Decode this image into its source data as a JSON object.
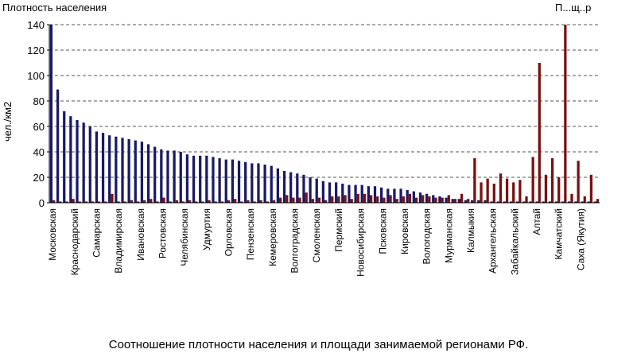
{
  "chart_data": {
    "type": "bar",
    "title": "Плотность населения",
    "title_right": "П...щ..р",
    "ylabel": "чел./км2",
    "caption": "Соотношение плотности населения и площади занимаемой регионами РФ.",
    "ylim": [
      0,
      140
    ],
    "yticks": [
      0,
      20,
      40,
      60,
      80,
      100,
      120,
      140
    ],
    "grid": true,
    "categories_labeled": [
      "Московская",
      "Краснодарский",
      "Самарская",
      "Владимирская",
      "Ивановская",
      "Ростовская",
      "Челябинская",
      "Удмуртия",
      "Орловская",
      "Пензенская",
      "Кемеровская",
      "Волгоградская",
      "Смоленская",
      "Пермский",
      "Новосибирская",
      "Псковская",
      "Кировская",
      "Вологодская",
      "Мурманская",
      "Калмыкия",
      "Архангельская",
      "Забайкальский",
      "Алтай",
      "Камчатский",
      "Саха (Якутия)"
    ],
    "series": [
      {
        "name": "Плотность населения",
        "color": "#1a1a66",
        "values": [
          145,
          89,
          72,
          68,
          65,
          63,
          60,
          56,
          55,
          53,
          52,
          51,
          50,
          49,
          48,
          46,
          44,
          42,
          41,
          41,
          40,
          38,
          37,
          37,
          37,
          36,
          35,
          34,
          34,
          33,
          32,
          31,
          31,
          30,
          29,
          27,
          25,
          24,
          23,
          22,
          20,
          19,
          17,
          16,
          16,
          15,
          14,
          14,
          14,
          13,
          13,
          12,
          11,
          11,
          11,
          10,
          9,
          8,
          7,
          6,
          5,
          4,
          3,
          3,
          2,
          2,
          2,
          2,
          1,
          1,
          1,
          1,
          1,
          1,
          1,
          1,
          1,
          1,
          1,
          1,
          1,
          1,
          1,
          1,
          1
        ]
      },
      {
        "name": "Площадь",
        "color": "#7a1010",
        "values": [
          2,
          1,
          1,
          3,
          1,
          1,
          1,
          1,
          1,
          7,
          1,
          1,
          2,
          1,
          2,
          3,
          1,
          4,
          1,
          2,
          1,
          2,
          1,
          1,
          2,
          1,
          1,
          2,
          3,
          1,
          2,
          1,
          2,
          1,
          2,
          4,
          6,
          4,
          4,
          8,
          3,
          4,
          2,
          5,
          5,
          6,
          3,
          7,
          7,
          6,
          5,
          4,
          6,
          3,
          5,
          7,
          4,
          6,
          5,
          4,
          4,
          6,
          3,
          7,
          3,
          35,
          16,
          19,
          15,
          23,
          19,
          16,
          18,
          5,
          36,
          110,
          22,
          35,
          20,
          145,
          7,
          33,
          5,
          22,
          3
        ]
      }
    ]
  }
}
